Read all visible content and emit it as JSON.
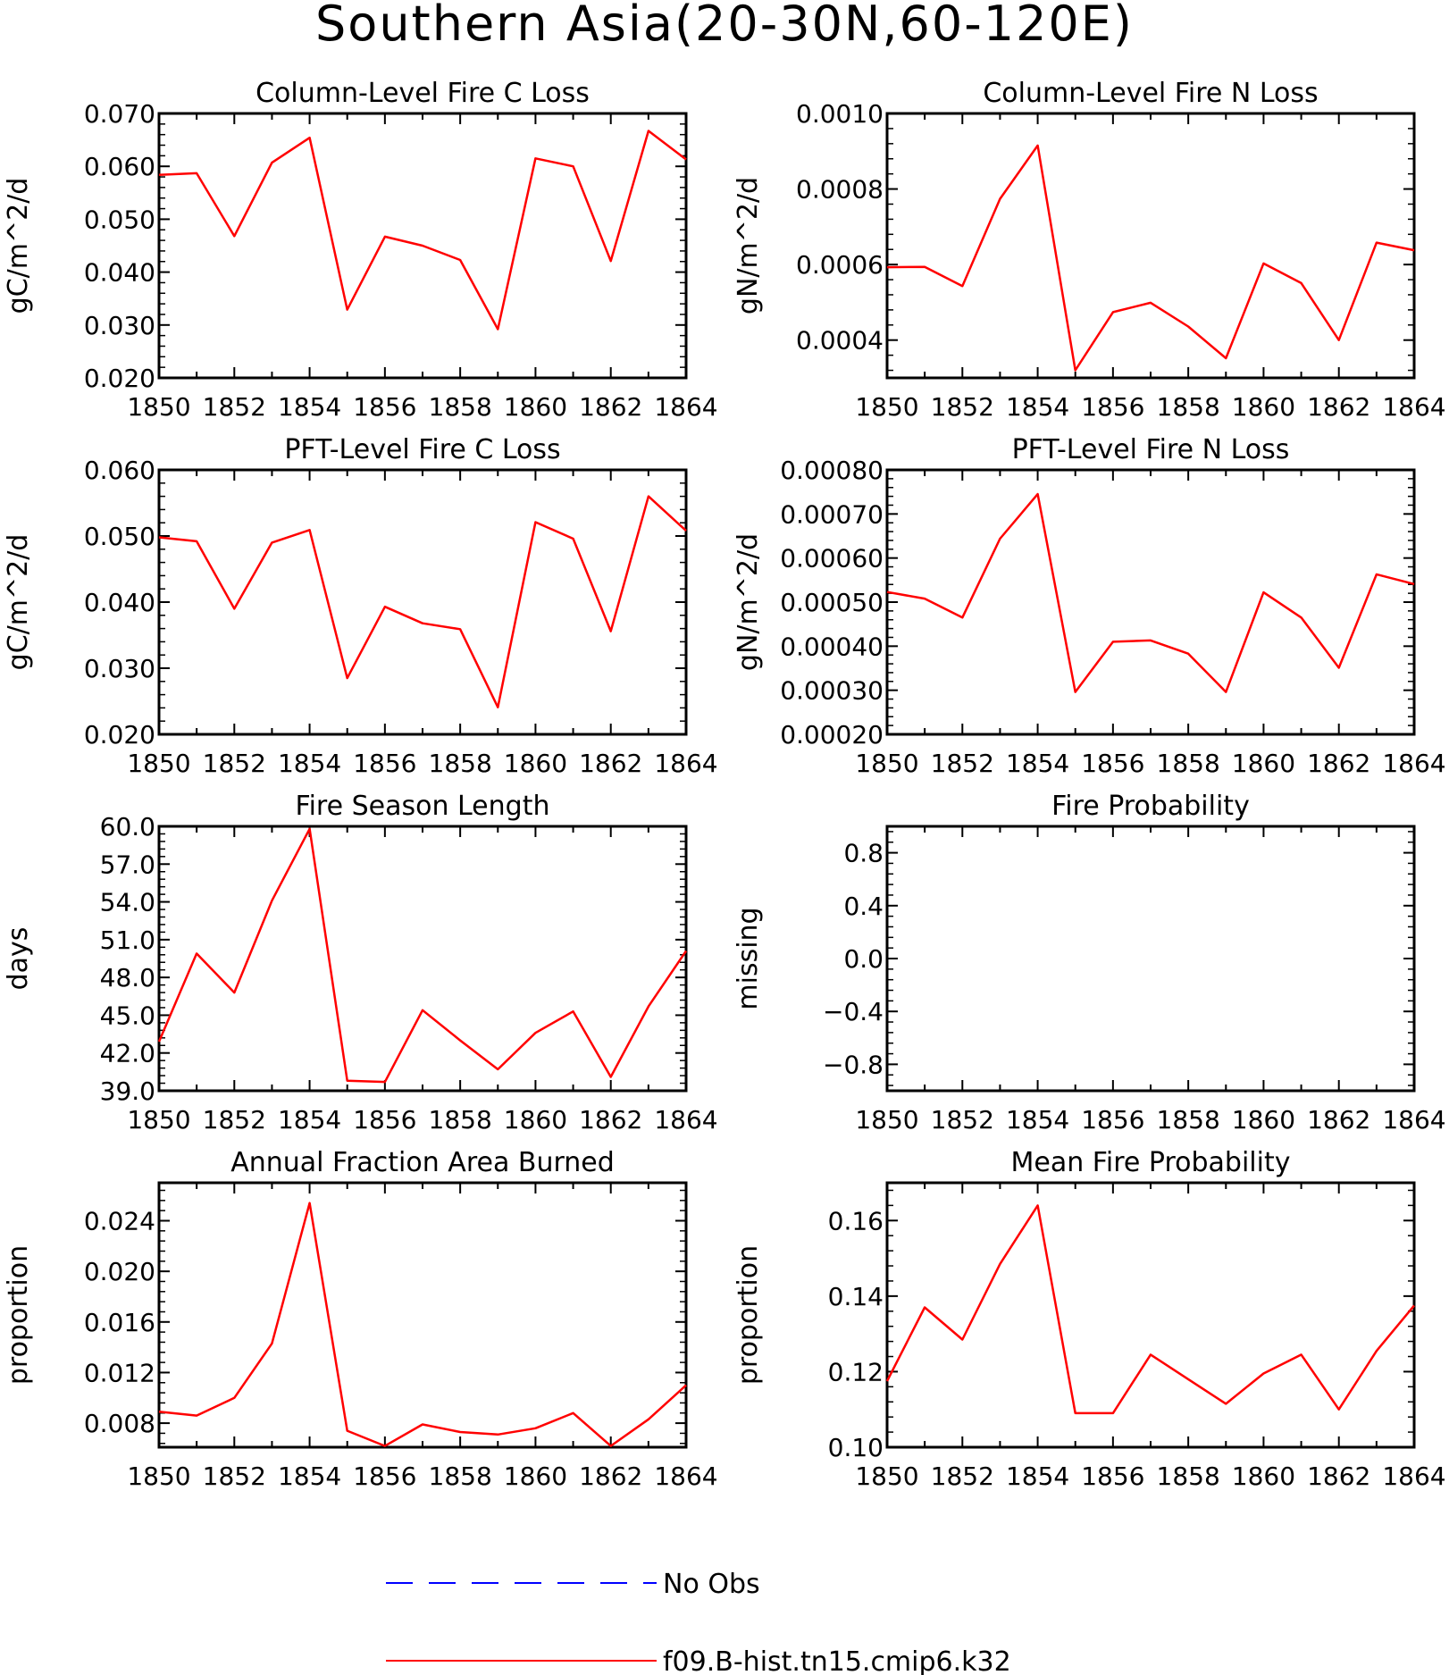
{
  "title": "Southern Asia(20-30N,60-120E)",
  "legend": {
    "obs_label": "No Obs",
    "obs_color": "#0000ff",
    "model_label": "f09.B-hist.tn15.cmip6.k32",
    "model_color": "#ff0000"
  },
  "chart_data": [
    {
      "type": "line",
      "title": "Column-Level Fire C Loss",
      "ylabel": "gC/m^2/d",
      "x": [
        1850,
        1851,
        1852,
        1853,
        1854,
        1855,
        1856,
        1857,
        1858,
        1859,
        1860,
        1861,
        1862,
        1863,
        1864
      ],
      "xlim": [
        1850,
        1864
      ],
      "xticks": [
        "1850",
        "1852",
        "1854",
        "1856",
        "1858",
        "1860",
        "1862",
        "1864"
      ],
      "ylim": [
        0.02,
        0.07
      ],
      "yticks": [
        "0.020",
        "0.030",
        "0.040",
        "0.050",
        "0.060",
        "0.070"
      ],
      "series": [
        {
          "name": "f09.B-hist.tn15.cmip6.k32",
          "values": [
            0.0584,
            0.0587,
            0.0468,
            0.0607,
            0.0654,
            0.0329,
            0.0467,
            0.045,
            0.0423,
            0.0292,
            0.0615,
            0.06,
            0.0421,
            0.0667,
            0.0613
          ]
        }
      ]
    },
    {
      "type": "line",
      "title": "Column-Level Fire N Loss",
      "ylabel": "gN/m^2/d",
      "x": [
        1850,
        1851,
        1852,
        1853,
        1854,
        1855,
        1856,
        1857,
        1858,
        1859,
        1860,
        1861,
        1862,
        1863,
        1864
      ],
      "xlim": [
        1850,
        1864
      ],
      "xticks": [
        "1850",
        "1852",
        "1854",
        "1856",
        "1858",
        "1860",
        "1862",
        "1864"
      ],
      "ylim": [
        0.0003,
        0.001
      ],
      "yticks": [
        "0.0004",
        "0.0006",
        "0.0008",
        "0.0010"
      ],
      "series": [
        {
          "name": "f09.B-hist.tn15.cmip6.k32",
          "values": [
            0.000593,
            0.000594,
            0.000543,
            0.000774,
            0.000915,
            0.00032,
            0.000474,
            0.000499,
            0.000436,
            0.000352,
            0.000603,
            0.000551,
            0.0004,
            0.000658,
            0.000638
          ]
        }
      ]
    },
    {
      "type": "line",
      "title": "PFT-Level Fire C Loss",
      "ylabel": "gC/m^2/d",
      "x": [
        1850,
        1851,
        1852,
        1853,
        1854,
        1855,
        1856,
        1857,
        1858,
        1859,
        1860,
        1861,
        1862,
        1863,
        1864
      ],
      "xlim": [
        1850,
        1864
      ],
      "xticks": [
        "1850",
        "1852",
        "1854",
        "1856",
        "1858",
        "1860",
        "1862",
        "1864"
      ],
      "ylim": [
        0.02,
        0.06
      ],
      "yticks": [
        "0.020",
        "0.030",
        "0.040",
        "0.050",
        "0.060"
      ],
      "series": [
        {
          "name": "f09.B-hist.tn15.cmip6.k32",
          "values": [
            0.0498,
            0.0492,
            0.039,
            0.049,
            0.0509,
            0.0285,
            0.0393,
            0.0368,
            0.0359,
            0.0241,
            0.0521,
            0.0496,
            0.0356,
            0.056,
            0.0508
          ]
        }
      ]
    },
    {
      "type": "line",
      "title": "PFT-Level Fire N Loss",
      "ylabel": "gN/m^2/d",
      "x": [
        1850,
        1851,
        1852,
        1853,
        1854,
        1855,
        1856,
        1857,
        1858,
        1859,
        1860,
        1861,
        1862,
        1863,
        1864
      ],
      "xlim": [
        1850,
        1864
      ],
      "xticks": [
        "1850",
        "1852",
        "1854",
        "1856",
        "1858",
        "1860",
        "1862",
        "1864"
      ],
      "ylim": [
        0.0002,
        0.0008
      ],
      "yticks": [
        "0.00020",
        "0.00030",
        "0.00040",
        "0.00050",
        "0.00060",
        "0.00070",
        "0.00080"
      ],
      "series": [
        {
          "name": "f09.B-hist.tn15.cmip6.k32",
          "values": [
            0.000523,
            0.000508,
            0.000465,
            0.000644,
            0.000745,
            0.000296,
            0.00041,
            0.000413,
            0.000383,
            0.000296,
            0.000522,
            0.000465,
            0.000351,
            0.000563,
            0.000541
          ]
        }
      ]
    },
    {
      "type": "line",
      "title": "Fire Season Length",
      "ylabel": "days",
      "x": [
        1850,
        1851,
        1852,
        1853,
        1854,
        1855,
        1856,
        1857,
        1858,
        1859,
        1860,
        1861,
        1862,
        1863,
        1864
      ],
      "xlim": [
        1850,
        1864
      ],
      "xticks": [
        "1850",
        "1852",
        "1854",
        "1856",
        "1858",
        "1860",
        "1862",
        "1864"
      ],
      "ylim": [
        39.0,
        60.0
      ],
      "yticks": [
        "39.0",
        "42.0",
        "45.0",
        "48.0",
        "51.0",
        "54.0",
        "57.0",
        "60.0"
      ],
      "series": [
        {
          "name": "f09.B-hist.tn15.cmip6.k32",
          "values": [
            42.9,
            49.9,
            46.8,
            54.1,
            59.8,
            39.8,
            39.7,
            45.4,
            43.0,
            40.7,
            43.6,
            45.3,
            40.1,
            45.7,
            50.1
          ]
        }
      ]
    },
    {
      "type": "line",
      "title": "Fire Probability",
      "ylabel": "missing",
      "x": [],
      "xlim": [
        1850,
        1864
      ],
      "xticks": [
        "1850",
        "1852",
        "1854",
        "1856",
        "1858",
        "1860",
        "1862",
        "1864"
      ],
      "ylim": [
        -1.0,
        1.0
      ],
      "yticks": [
        "−0.8",
        "−0.4",
        "0.0",
        "0.4",
        "0.8"
      ],
      "ytick_values": [
        -0.8,
        -0.4,
        0.0,
        0.4,
        0.8
      ],
      "series": []
    },
    {
      "type": "line",
      "title": "Annual Fraction Area Burned",
      "ylabel": "proportion",
      "x": [
        1850,
        1851,
        1852,
        1853,
        1854,
        1855,
        1856,
        1857,
        1858,
        1859,
        1860,
        1861,
        1862,
        1863,
        1864
      ],
      "xlim": [
        1850,
        1864
      ],
      "xticks": [
        "1850",
        "1852",
        "1854",
        "1856",
        "1858",
        "1860",
        "1862",
        "1864"
      ],
      "ylim": [
        0.0061,
        0.027
      ],
      "yticks": [
        "0.008",
        "0.012",
        "0.016",
        "0.020",
        "0.024"
      ],
      "series": [
        {
          "name": "f09.B-hist.tn15.cmip6.k32",
          "values": [
            0.0089,
            0.0086,
            0.01,
            0.0143,
            0.0254,
            0.0074,
            0.0062,
            0.0079,
            0.0073,
            0.0071,
            0.0076,
            0.0088,
            0.0062,
            0.0083,
            0.011
          ]
        }
      ]
    },
    {
      "type": "line",
      "title": "Mean Fire Probability",
      "ylabel": "proportion",
      "x": [
        1850,
        1851,
        1852,
        1853,
        1854,
        1855,
        1856,
        1857,
        1858,
        1859,
        1860,
        1861,
        1862,
        1863,
        1864
      ],
      "xlim": [
        1850,
        1864
      ],
      "xticks": [
        "1850",
        "1852",
        "1854",
        "1856",
        "1858",
        "1860",
        "1862",
        "1864"
      ],
      "ylim": [
        0.1,
        0.17
      ],
      "yticks": [
        "0.10",
        "0.12",
        "0.14",
        "0.16"
      ],
      "series": [
        {
          "name": "f09.B-hist.tn15.cmip6.k32",
          "values": [
            0.1175,
            0.137,
            0.1285,
            0.1485,
            0.164,
            0.109,
            0.109,
            0.1245,
            0.118,
            0.1115,
            0.1195,
            0.1245,
            0.11,
            0.1255,
            0.1375
          ]
        }
      ]
    }
  ]
}
